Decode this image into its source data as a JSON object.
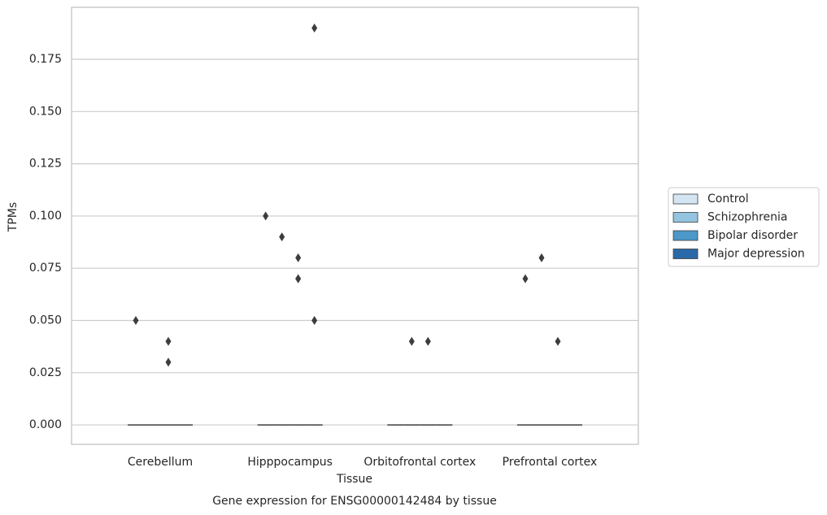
{
  "chart_data": {
    "type": "box",
    "title": "Gene expression for ENSG00000142484 by tissue",
    "x_label": "Tissue",
    "y_label": "TPMs",
    "categories": [
      "Cerebellum",
      "Hipppocampus",
      "Orbitofrontal cortex",
      "Prefrontal cortex"
    ],
    "ylim": [
      -0.0093,
      0.1999
    ],
    "yticks": [
      {
        "value": 0,
        "label": "0.000"
      },
      {
        "value": 0.025,
        "label": "0.025"
      },
      {
        "value": 0.05,
        "label": "0.050"
      },
      {
        "value": 0.075,
        "label": "0.075"
      },
      {
        "value": 0.1,
        "label": "0.100"
      },
      {
        "value": 0.125,
        "label": "0.125"
      },
      {
        "value": 0.15,
        "label": "0.150"
      },
      {
        "value": 0.175,
        "label": "0.175"
      }
    ],
    "grid": true,
    "legend": "right",
    "series": [
      {
        "name": "Control",
        "color": "#d3e4f3",
        "whisker_low": [
          0,
          0,
          0,
          0
        ],
        "q1": [
          0,
          0,
          0,
          0
        ],
        "median": [
          0,
          0,
          0,
          0
        ],
        "q3": [
          0,
          0,
          0,
          0
        ],
        "whisker_high": [
          0,
          0,
          0,
          0
        ],
        "outliers": [
          [
            0.05
          ],
          [
            0.1
          ],
          [],
          [
            0.07
          ]
        ]
      },
      {
        "name": "Schizophrenia",
        "color": "#94c4df",
        "whisker_low": [
          0,
          0,
          0,
          0
        ],
        "q1": [
          0,
          0,
          0,
          0
        ],
        "median": [
          0,
          0,
          0,
          0
        ],
        "q3": [
          0,
          0,
          0,
          0
        ],
        "whisker_high": [
          0,
          0,
          0,
          0
        ],
        "outliers": [
          [],
          [
            0.09
          ],
          [
            0.04
          ],
          [
            0.08
          ]
        ]
      },
      {
        "name": "Bipolar disorder",
        "color": "#4b98c9",
        "whisker_low": [
          0,
          0,
          0,
          0
        ],
        "q1": [
          0,
          0,
          0,
          0
        ],
        "median": [
          0,
          0,
          0,
          0
        ],
        "q3": [
          0,
          0,
          0,
          0
        ],
        "whisker_high": [
          0,
          0,
          0,
          0
        ],
        "outliers": [
          [
            0.04,
            0.03
          ],
          [
            0.08,
            0.07,
            0.07
          ],
          [
            0.04
          ],
          [
            0.04
          ]
        ]
      },
      {
        "name": "Major depression",
        "color": "#2a69a8",
        "whisker_low": [
          0,
          0,
          0,
          0
        ],
        "q1": [
          0,
          0,
          0,
          0
        ],
        "median": [
          0,
          0,
          0,
          0
        ],
        "q3": [
          0,
          0,
          0,
          0
        ],
        "whisker_high": [
          0,
          0,
          0,
          0
        ],
        "outliers": [
          [],
          [
            0.19,
            0.05
          ],
          [],
          []
        ]
      }
    ]
  }
}
